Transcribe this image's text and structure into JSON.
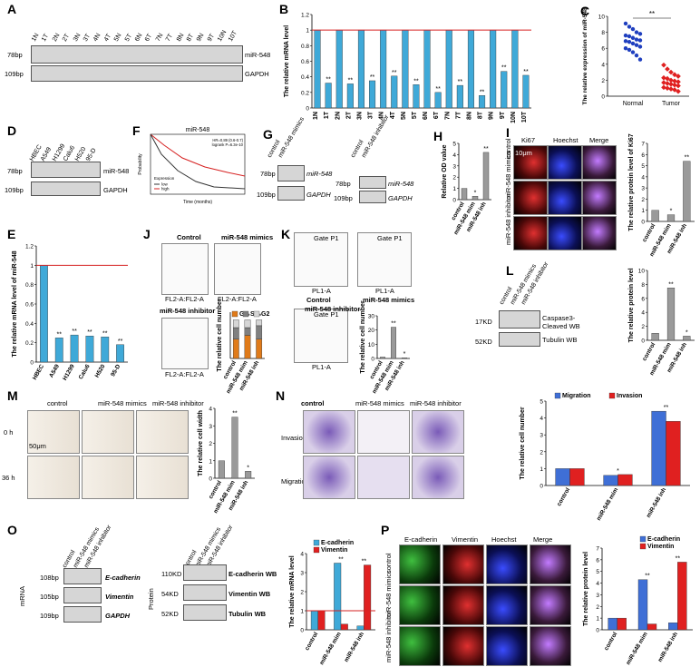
{
  "panels": [
    "A",
    "B",
    "C",
    "D",
    "E",
    "F",
    "G",
    "H",
    "I",
    "J",
    "K",
    "L",
    "M",
    "N",
    "O",
    "P"
  ],
  "A": {
    "lanes": [
      "1N",
      "1T",
      "2N",
      "2T",
      "3N",
      "3T",
      "4N",
      "4T",
      "5N",
      "5T",
      "6N",
      "6T",
      "7N",
      "7T",
      "8N",
      "8T",
      "9N",
      "9T",
      "10N",
      "10T"
    ],
    "sizes": [
      "78bp",
      "109bp"
    ],
    "targets": [
      "miR-548",
      "GAPDH"
    ]
  },
  "D": {
    "lanes": [
      "HBEC",
      "A549",
      "H1299",
      "Calu6",
      "H520",
      "95-D"
    ],
    "sizes": [
      "78bp",
      "109bp"
    ],
    "targets": [
      "miR-548",
      "GAPDH"
    ]
  },
  "G": {
    "left_lanes": [
      "control",
      "miR-548 mimics"
    ],
    "right_lanes": [
      "control",
      "miR-548 inhibitor"
    ],
    "sizes": [
      "78bp",
      "109bp"
    ],
    "targets": [
      "miR-548",
      "GAPDH"
    ]
  },
  "F": {
    "title": "miR-548",
    "stats_line1": "HR=0.89 (0.6-0.7)",
    "stats_line2": "logrank P=6.3e-10",
    "ylabel": "Probability",
    "xlabel": "Time (months)",
    "legend_title": "Expression",
    "legend": [
      "low",
      "high"
    ],
    "colors": {
      "low": "#333333",
      "high": "#d62020"
    }
  },
  "I": {
    "columns": [
      "Ki67",
      "Hoechst",
      "Merge"
    ],
    "rows": [
      "control",
      "miR-548 mimics",
      "miR-548 inhibitor"
    ],
    "scale": "10μm"
  },
  "J": {
    "titles": [
      "Control",
      "miR-548 mimics",
      "miR-548 inhibitor"
    ],
    "xlabel": "FL2-A:FL2-A",
    "ylabel": "Count",
    "ticks": [
      "1M",
      "2M",
      "3M"
    ],
    "legend": [
      "G1",
      "S",
      "G2"
    ]
  },
  "K": {
    "gate": "Gate P1",
    "titles": [
      "Control",
      "miR-548 mimics",
      "miR-548 inhibitor"
    ],
    "xlabel": "PL1-A",
    "ylabel": "PL3-A"
  },
  "L": {
    "lanes": [
      "control",
      "miR-548 mimics",
      "miR-548 inhibitor"
    ],
    "sizes": [
      "17KD",
      "52KD"
    ],
    "targets": [
      "Caspase3-Cleaved WB",
      "Tubulin WB"
    ]
  },
  "M": {
    "columns": [
      "control",
      "miR-548 mimics",
      "miR-548 inhibitor"
    ],
    "rows": [
      "0 h",
      "36 h"
    ],
    "scale": "50μm"
  },
  "N": {
    "columns": [
      "control",
      "miR-548 mimics",
      "miR-548 inhibitor"
    ],
    "rows": [
      "Invasion",
      "Migration"
    ]
  },
  "O": {
    "mrna_lanes": [
      "control",
      "miR-548 mimics",
      "miR-548 inhibitor"
    ],
    "mrna_sizes": [
      "108bp",
      "105bp",
      "109bp"
    ],
    "mrna_targets": [
      "E-cadherin",
      "Vimentin",
      "GAPDH"
    ],
    "mrna_side": "mRNA",
    "prot_sizes": [
      "110KD",
      "54KD",
      "52KD"
    ],
    "prot_targets": [
      "E-cadherin WB",
      "Vimentin WB",
      "Tubulin WB"
    ],
    "prot_side": "Protein"
  },
  "P": {
    "columns": [
      "E-cadherin",
      "Vimentin",
      "Hoechst",
      "Merge"
    ],
    "rows": [
      "control",
      "miR-548 mimics",
      "miR-548 inhibitor"
    ]
  },
  "chart_data": [
    {
      "id": "B",
      "type": "bar",
      "ylabel": "The relative mRNA level",
      "categories": [
        "1N",
        "1T",
        "2N",
        "2T",
        "3N",
        "3T",
        "4N",
        "4T",
        "5N",
        "5T",
        "6N",
        "6T",
        "7N",
        "7T",
        "8N",
        "8T",
        "9N",
        "9T",
        "10N",
        "10T"
      ],
      "values": [
        1,
        0.32,
        1,
        0.31,
        1,
        0.35,
        1,
        0.41,
        1,
        0.3,
        1,
        0.2,
        1,
        0.29,
        1,
        0.16,
        1,
        0.47,
        1,
        0.42
      ],
      "sig": [
        "",
        "**",
        "",
        "**",
        "",
        "**",
        "",
        "**",
        "",
        "**",
        "",
        "**",
        "",
        "**",
        "",
        "**",
        "",
        "**",
        "",
        "**"
      ],
      "ylim": [
        0,
        1.2
      ],
      "yticks": [
        0,
        0.2,
        0.4,
        0.6,
        0.8,
        1,
        1.2
      ],
      "ref_line": 1,
      "ref_color": "#d62020",
      "color": "#3fa9d8"
    },
    {
      "id": "C",
      "type": "scatter",
      "ylabel": "The relative expression of miR-548",
      "categories": [
        "Normal",
        "Tumor"
      ],
      "sig": "**",
      "ylim": [
        0,
        10
      ],
      "yticks": [
        0,
        2,
        4,
        6,
        8,
        10
      ],
      "colors": [
        "#1f3fbf",
        "#e02020"
      ],
      "normal": [
        9.1,
        8.7,
        8.4,
        8.0,
        7.8,
        7.6,
        7.5,
        7.3,
        7.1,
        7.0,
        6.9,
        6.8,
        6.6,
        6.4,
        6.2,
        6.0,
        5.8,
        5.5,
        5.1,
        4.6
      ],
      "tumor": [
        3.9,
        3.4,
        3.0,
        2.7,
        2.5,
        2.3,
        2.2,
        2.0,
        1.9,
        1.8,
        1.7,
        1.6,
        1.5,
        1.4,
        1.3,
        1.1,
        1.0,
        0.9,
        0.8,
        0.6
      ]
    },
    {
      "id": "E",
      "type": "bar",
      "ylabel": "The relative mRNA level of miR-548",
      "categories": [
        "HBEC",
        "A549",
        "H1299",
        "Calu6",
        "H520",
        "95-D"
      ],
      "values": [
        1,
        0.25,
        0.28,
        0.27,
        0.26,
        0.18
      ],
      "sig": [
        "",
        "**",
        "**",
        "**",
        "**",
        "**"
      ],
      "ylim": [
        0,
        1.2
      ],
      "yticks": [
        0,
        0.2,
        0.4,
        0.6,
        0.8,
        1,
        1.2
      ],
      "ref_line": 1,
      "ref_color": "#d62020",
      "color": "#3fa9d8"
    },
    {
      "id": "H",
      "type": "bar",
      "ylabel": "Relative OD value",
      "categories": [
        "control",
        "miR-548 mim",
        "miR-548 inh"
      ],
      "values": [
        1,
        0.3,
        4.2
      ],
      "sig": [
        "",
        "*",
        "**"
      ],
      "ylim": [
        0,
        5
      ],
      "yticks": [
        0,
        1,
        2,
        3,
        4,
        5
      ],
      "color": "#9a9a9a"
    },
    {
      "id": "I",
      "type": "bar",
      "ylabel": "The relative protein level of Ki67",
      "categories": [
        "control",
        "miR-548 mim",
        "miR-548 inh"
      ],
      "values": [
        1,
        0.6,
        5.4
      ],
      "sig": [
        "",
        "*",
        "**"
      ],
      "ylim": [
        0,
        7
      ],
      "yticks": [
        0,
        1,
        2,
        3,
        4,
        5,
        6,
        7
      ],
      "color": "#9a9a9a"
    },
    {
      "id": "J",
      "type": "bar",
      "ylabel": "The relative cell number",
      "categories": [
        "control",
        "miR-548 mim",
        "miR-548 inh"
      ],
      "series": [
        {
          "name": "G1",
          "values": [
            0.5,
            0.6,
            0.5
          ]
        },
        {
          "name": "S",
          "values": [
            0.3,
            0.2,
            0.35
          ]
        },
        {
          "name": "G2",
          "values": [
            0.2,
            0.2,
            0.15
          ]
        }
      ],
      "sig": [
        "",
        "**",
        "**"
      ],
      "ylim": [
        0,
        1.2
      ],
      "colors": [
        "#e07b1a",
        "#808080",
        "#d6d6d6"
      ]
    },
    {
      "id": "K",
      "type": "bar",
      "ylabel": "The relative cell number",
      "categories": [
        "control",
        "miR-548 mim",
        "miR-548 inh"
      ],
      "values": [
        1,
        22,
        0.5
      ],
      "sig": [
        "",
        "**",
        "*"
      ],
      "ylim": [
        0,
        30
      ],
      "yticks": [
        0,
        10,
        20,
        30
      ],
      "color": "#9a9a9a"
    },
    {
      "id": "L",
      "type": "bar",
      "ylabel": "The relative protein level",
      "categories": [
        "control",
        "miR-548 mim",
        "miR-548 inh"
      ],
      "values": [
        1,
        7.5,
        0.6
      ],
      "sig": [
        "",
        "**",
        "*"
      ],
      "ylim": [
        0,
        10
      ],
      "yticks": [
        0,
        2,
        4,
        6,
        8,
        10
      ],
      "color": "#9a9a9a"
    },
    {
      "id": "M",
      "type": "bar",
      "ylabel": "The relative cell width",
      "categories": [
        "control",
        "miR-548 mim",
        "miR-548 inh"
      ],
      "values": [
        1,
        3.5,
        0.4
      ],
      "sig": [
        "",
        "**",
        "*"
      ],
      "ylim": [
        0,
        4
      ],
      "yticks": [
        0,
        1,
        2,
        3,
        4
      ],
      "color": "#9a9a9a"
    },
    {
      "id": "N",
      "type": "bar",
      "ylabel": "The relative cell number",
      "categories": [
        "control",
        "miR-548 mim",
        "miR-548 inh"
      ],
      "series": [
        {
          "name": "Migration",
          "values": [
            1,
            0.6,
            4.4
          ]
        },
        {
          "name": "Invasion",
          "values": [
            1,
            0.65,
            3.8
          ]
        }
      ],
      "sig": [
        "",
        "*",
        "**"
      ],
      "ylim": [
        0,
        5
      ],
      "yticks": [
        0,
        1,
        2,
        3,
        4,
        5
      ],
      "colors": [
        "#3f6fd6",
        "#e02020"
      ]
    },
    {
      "id": "O",
      "type": "bar",
      "ylabel": "The relative mRNA level",
      "categories": [
        "control",
        "miR-548 mim",
        "miR-548 inh"
      ],
      "series": [
        {
          "name": "E-cadherin",
          "values": [
            1,
            3.5,
            0.2
          ]
        },
        {
          "name": "Vimentin",
          "values": [
            1,
            0.3,
            3.4
          ]
        }
      ],
      "sig": [
        "",
        "**",
        "**"
      ],
      "ylim": [
        0,
        4
      ],
      "yticks": [
        0,
        1,
        2,
        3,
        4
      ],
      "ref_line": 1,
      "ref_color": "#d62020",
      "colors": [
        "#3fa9d8",
        "#e02020"
      ]
    },
    {
      "id": "P",
      "type": "bar",
      "ylabel": "The relative protein level",
      "categories": [
        "control",
        "miR-548 mim",
        "miR-548 inh"
      ],
      "series": [
        {
          "name": "E-cadherin",
          "values": [
            1,
            4.3,
            0.6
          ]
        },
        {
          "name": "Vimentin",
          "values": [
            1,
            0.5,
            5.8
          ]
        }
      ],
      "sig": [
        "",
        "**",
        "**"
      ],
      "ylim": [
        0,
        7
      ],
      "yticks": [
        0,
        1,
        2,
        3,
        4,
        5,
        6,
        7
      ],
      "colors": [
        "#3f6fd6",
        "#e02020"
      ]
    }
  ]
}
